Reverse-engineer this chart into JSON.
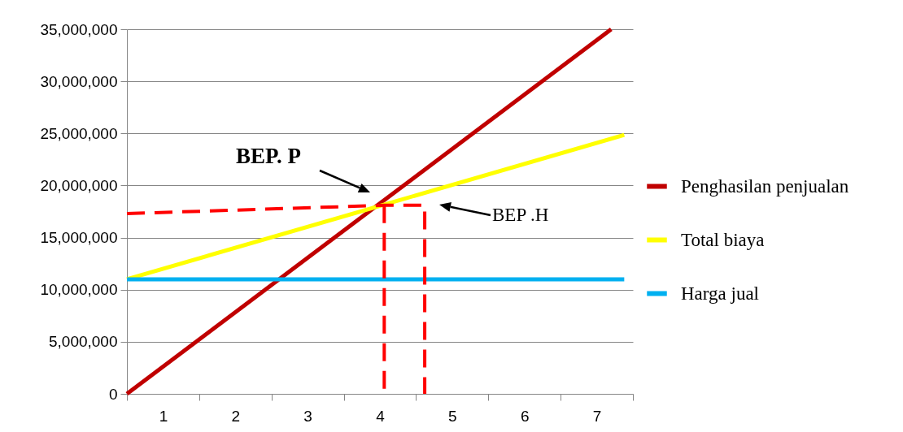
{
  "chart_data": {
    "type": "line",
    "xlim": [
      0.5,
      7.5
    ],
    "xticks": [
      {
        "value": 0.5,
        "label": null
      },
      1,
      {
        "value": 1.5,
        "label": null
      },
      2,
      {
        "value": 2.5,
        "label": null
      },
      3,
      {
        "value": 3.5,
        "label": null
      },
      4,
      {
        "value": 4.5,
        "label": null
      },
      5,
      {
        "value": 5.5,
        "label": null
      },
      6,
      {
        "value": 6.5,
        "label": null
      },
      7,
      {
        "value": 7.5,
        "label": null
      }
    ],
    "ylim": [
      0,
      35000000
    ],
    "yticks": [
      {
        "value": 0,
        "label": "0"
      },
      {
        "value": 5000000,
        "label": "5,000,000"
      },
      {
        "value": 10000000,
        "label": "10,000,000"
      },
      {
        "value": 15000000,
        "label": "15,000,000"
      },
      {
        "value": 20000000,
        "label": "20,000,000"
      },
      {
        "value": 25000000,
        "label": "25,000,000"
      },
      {
        "value": 30000000,
        "label": "30,000,000"
      },
      {
        "value": 35000000,
        "label": "35,000,000"
      }
    ],
    "grid": "y",
    "legend": "right",
    "annotations": [
      "BEP. P",
      "BEP .H"
    ],
    "series": [
      {
        "name": "Penghasilan penjualan",
        "color": "#c00000",
        "x": [
          0.5,
          7.2
        ],
        "values": [
          0,
          35000000
        ]
      },
      {
        "name": "Total biaya",
        "color": "#ffff00",
        "x": [
          0.5,
          7.38
        ],
        "values": [
          11000000,
          24850000
        ]
      },
      {
        "name": "Harga jual",
        "color": "#00b0f0",
        "x": [
          0.5,
          7.38
        ],
        "values": [
          11000000,
          11000000
        ]
      },
      {
        "color": "#ff0000",
        "line_style": "dashed",
        "x": [
          0.5,
          4.06,
          4.62,
          4.62
        ],
        "values": [
          17300000,
          18100000,
          18100000,
          0
        ]
      },
      {
        "color": "#ff0000",
        "line_style": "dashed",
        "x": [
          4.06,
          4.06
        ],
        "values": [
          18100000,
          0
        ]
      }
    ]
  }
}
